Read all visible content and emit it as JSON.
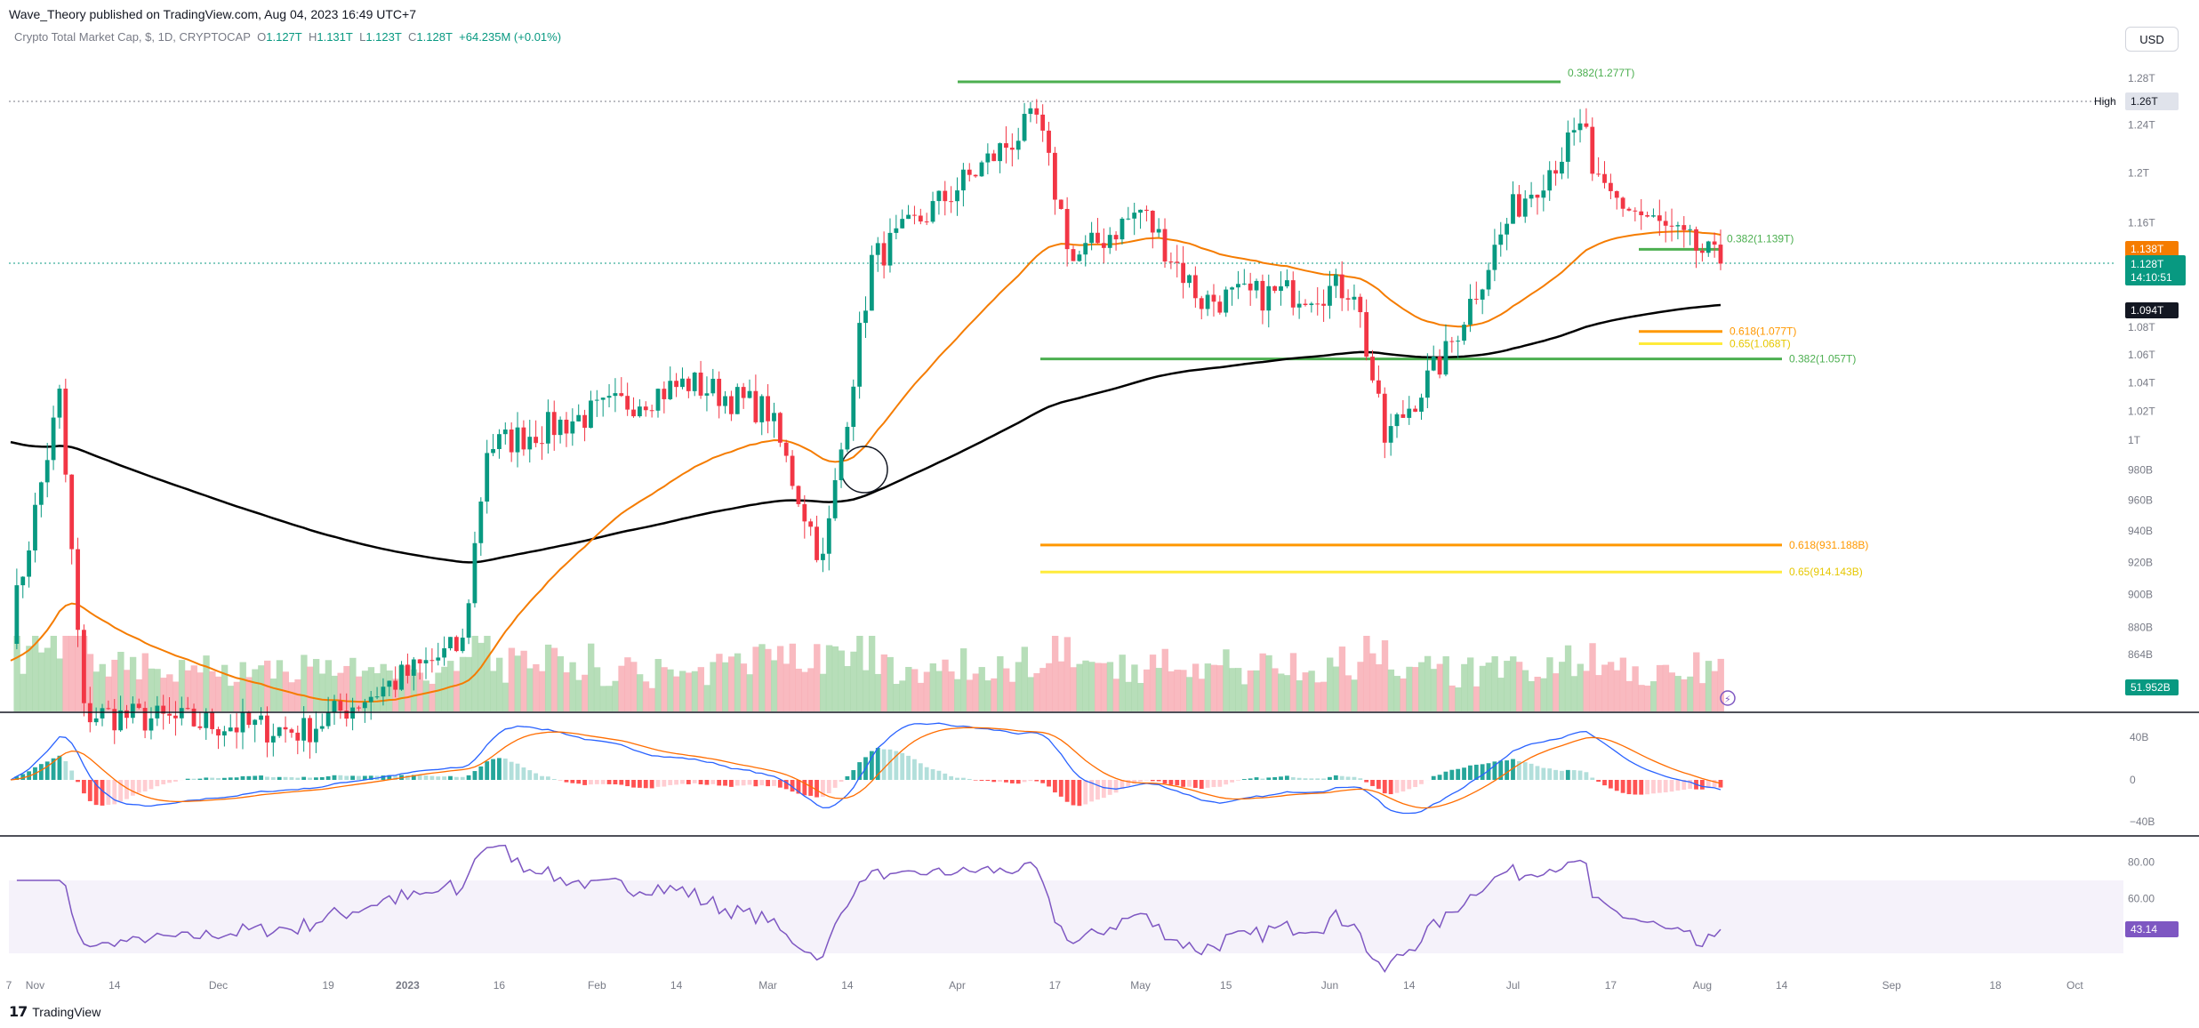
{
  "header": {
    "published": "Wave_Theory published on TradingView.com, Aug 04, 2023 16:49 UTC+7",
    "symbol": "Crypto Total Market Cap, $, 1D, CRYPTOCAP",
    "ohlc": {
      "o_label": "O",
      "o": "1.127T",
      "h_label": "H",
      "h": "1.131T",
      "l_label": "L",
      "l": "1.123T",
      "c_label": "C",
      "c": "1.128T",
      "change": "+64.235M (+0.01%)"
    },
    "currency_button": "USD"
  },
  "footer": {
    "brand": "TradingView"
  },
  "colors": {
    "up": "#089981",
    "down": "#f23645",
    "ema50": "#f57c00",
    "ema200": "#000000",
    "fib_green": "#4caf50",
    "fib_orange": "#ff9800",
    "fib_yellow": "#ffeb3b",
    "macd": "#2962ff",
    "signal": "#ff6d00",
    "rsi": "#7e57c2"
  },
  "chart_data": [
    {
      "type": "candlestick",
      "title": "",
      "y_ticks": [
        "1.28T",
        "1.24T",
        "1.2T",
        "1.16T",
        "1.08T",
        "1.06T",
        "1.04T",
        "1.02T",
        "1T",
        "980B",
        "960B",
        "940B",
        "920B",
        "900B",
        "880B",
        "864B"
      ],
      "x_ticks": [
        "7",
        "Nov",
        "14",
        "Dec",
        "19",
        "2023",
        "16",
        "Feb",
        "14",
        "Mar",
        "14",
        "Apr",
        "17",
        "May",
        "15",
        "Jun",
        "14",
        "Jul",
        "17",
        "Aug",
        "14",
        "Sep",
        "18",
        "Oct"
      ],
      "high_label": "High",
      "high_value": "1.26T",
      "price_tags": {
        "ema50": "1.138T",
        "last": "1.128T",
        "countdown": "14:10:51",
        "ema200": "1.094T",
        "volume": "51.952B"
      },
      "fib_levels": [
        {
          "label": "0.382(1.277T)",
          "value": 1.277,
          "color": "green"
        },
        {
          "label": "0.382(1.139T)",
          "value": 1.139,
          "color": "green"
        },
        {
          "label": "0.618(1.077T)",
          "value": 1.077,
          "color": "orange"
        },
        {
          "label": "0.65(1.068T)",
          "value": 1.068,
          "color": "yellow"
        },
        {
          "label": "0.382(1.057T)",
          "value": 1.057,
          "color": "green"
        },
        {
          "label": "0.618(931.188B)",
          "value": 0.931,
          "color": "orange"
        },
        {
          "label": "0.65(914.143B)",
          "value": 0.914,
          "color": "yellow"
        }
      ],
      "price_path_anchors": [
        {
          "date": "2022-10-28",
          "close": 0.88
        },
        {
          "date": "2022-11-05",
          "close": 1.03
        },
        {
          "date": "2022-11-09",
          "close": 0.83
        },
        {
          "date": "2022-12-15",
          "close": 0.82
        },
        {
          "date": "2023-01-10",
          "close": 0.87
        },
        {
          "date": "2023-01-14",
          "close": 0.995
        },
        {
          "date": "2023-02-16",
          "close": 1.04
        },
        {
          "date": "2023-03-01",
          "close": 1.02
        },
        {
          "date": "2023-03-10",
          "close": 0.92
        },
        {
          "date": "2023-03-18",
          "close": 1.13
        },
        {
          "date": "2023-04-14",
          "close": 1.245
        },
        {
          "date": "2023-04-20",
          "close": 1.13
        },
        {
          "date": "2023-05-01",
          "close": 1.17
        },
        {
          "date": "2023-05-11",
          "close": 1.1
        },
        {
          "date": "2023-06-05",
          "close": 1.11
        },
        {
          "date": "2023-06-10",
          "close": 1.0
        },
        {
          "date": "2023-06-20",
          "close": 1.06
        },
        {
          "date": "2023-07-01",
          "close": 1.17
        },
        {
          "date": "2023-07-13",
          "close": 1.24
        },
        {
          "date": "2023-07-14",
          "close": 1.19
        },
        {
          "date": "2023-08-04",
          "close": 1.128
        }
      ]
    },
    {
      "type": "histogram",
      "y_ticks": [
        "40B",
        "0",
        "−40B"
      ]
    },
    {
      "type": "line",
      "y_ticks": [
        "80.00",
        "60.00"
      ],
      "last_value": "43.14",
      "band": [
        30,
        70
      ]
    }
  ]
}
